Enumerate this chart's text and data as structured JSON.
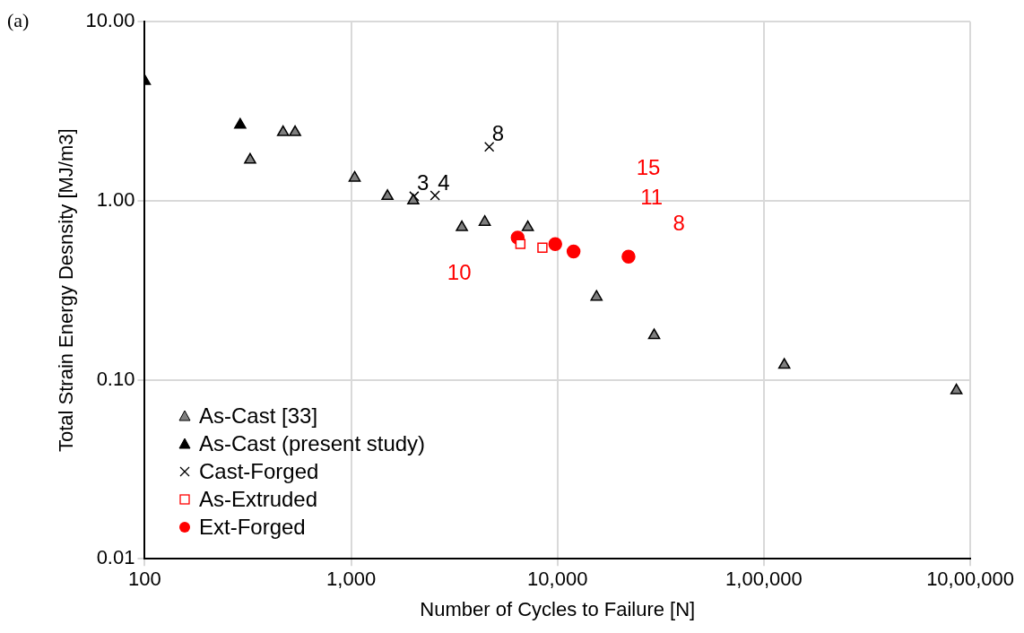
{
  "chart_data": {
    "type": "scatter",
    "xlabel": "Number of Cycles to Failure [N]",
    "ylabel": "Total Strain Energy Desnsity [MJ/m3]",
    "log": "xy",
    "grid": true,
    "legend": "bottom left",
    "xlim": [
      100,
      1000000
    ],
    "xticks": [
      100,
      {
        "value": 1000,
        "label": "1,000"
      },
      {
        "value": 10000,
        "label": "10,000"
      },
      {
        "value": 100000,
        "label": "1,00,000"
      },
      {
        "value": 1000000,
        "label": "10,00,000"
      }
    ],
    "ylim": [
      0.01,
      10
    ],
    "yticks": [
      {
        "value": 0.01,
        "label": "0.01"
      },
      {
        "value": 0.1,
        "label": "0.10"
      },
      {
        "value": 1,
        "label": "1.00"
      },
      {
        "value": 10,
        "label": "10.00"
      }
    ],
    "series": [
      {
        "name": "As-Cast [33]",
        "color": "#7f7f7f",
        "marker": "triangle",
        "x": [
          324,
          468,
          535,
          1040,
          1500,
          2000,
          3440,
          4440,
          7180,
          15450,
          29400,
          125600,
          857000
        ],
        "values": [
          1.69,
          2.41,
          2.41,
          1.34,
          1.06,
          1.0,
          0.71,
          0.76,
          0.71,
          0.29,
          0.177,
          0.121,
          0.087
        ]
      },
      {
        "name": "As-Cast (present study)",
        "color": "#000000",
        "marker": "triangle",
        "x": [
          100,
          290
        ],
        "values": [
          4.65,
          2.65
        ]
      },
      {
        "name": "Cast-Forged",
        "color": "#000000",
        "marker": "cross",
        "x": [
          2020,
          2550,
          4670
        ],
        "values": [
          1.06,
          1.07,
          2.0
        ]
      },
      {
        "name": "As-Extruded",
        "color": "#ff0000",
        "marker": "square",
        "x": [
          6610,
          8450
        ],
        "values": [
          0.573,
          0.547
        ]
      },
      {
        "name": "Ext-Forged",
        "color": "#ff0000",
        "marker": "circle",
        "x": [
          6410,
          9750,
          11960,
          22080
        ],
        "values": [
          0.622,
          0.573,
          0.52,
          0.487
        ]
      }
    ],
    "annotations": [
      "(a)",
      "15",
      "11",
      "8",
      "10",
      {
        "text": "3",
        "x": 2020,
        "y": 1.06
      },
      {
        "text": "4",
        "x": 2550,
        "y": 1.07
      },
      {
        "text": "8",
        "x": 4670,
        "y": 2.0
      }
    ]
  }
}
